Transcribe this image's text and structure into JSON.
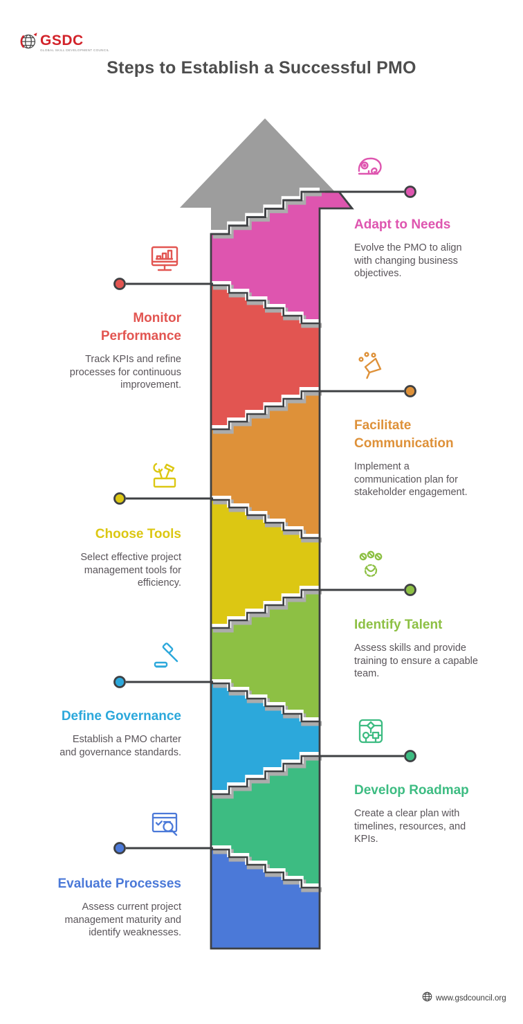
{
  "logo": {
    "name": "GSDC",
    "tagline": "GLOBAL SKILL DEVELOPMENT COUNCIL"
  },
  "title": "Steps to Establish a Successful PMO",
  "footer": {
    "url": "www.gsdcouncil.org"
  },
  "colors": {
    "arrow_gray": "#9d9d9d",
    "outline": "#3e4043",
    "connector": "#3e4043",
    "heading_text": "#4d4d4d",
    "body_text": "#595459",
    "logo_red": "#d2232a"
  },
  "steps": [
    {
      "title": "Adapt to Needs",
      "description": "Evolve the PMO to align\nwith changing business\nobjectives.",
      "color": "#de55af",
      "side": "right",
      "icon": "chameleon-icon"
    },
    {
      "title": "Monitor\nPerformance",
      "description": "Track KPIs and refine\nprocesses for continuous\nimprovement.",
      "color": "#e25551",
      "side": "left",
      "icon": "monitor-chart-icon"
    },
    {
      "title": "Facilitate\nCommunication",
      "description": "Implement a\ncommunication plan for\nstakeholder engagement.",
      "color": "#de9139",
      "side": "right",
      "icon": "megaphone-icon"
    },
    {
      "title": "Choose Tools",
      "description": "Select effective project\nmanagement tools for\nefficiency.",
      "color": "#dcc713",
      "side": "left",
      "icon": "toolbox-icon"
    },
    {
      "title": "Identify Talent",
      "description": "Assess skills and provide\ntraining to ensure a capable\nteam.",
      "color": "#8dc044",
      "side": "right",
      "icon": "team-gear-icon"
    },
    {
      "title": "Define Governance",
      "description": "Establish a PMO charter\nand governance standards.",
      "color": "#2ca8db",
      "side": "left",
      "icon": "gavel-icon"
    },
    {
      "title": "Develop Roadmap",
      "description": "Create a clear plan with\ntimelines, resources, and\nKPIs.",
      "color": "#3dbc82",
      "side": "right",
      "icon": "roadmap-icon"
    },
    {
      "title": "Evaluate Processes",
      "description": "Assess current project\nmanagement maturity and\nidentify weaknesses.",
      "color": "#4b79d8",
      "side": "left",
      "icon": "checklist-search-icon"
    }
  ]
}
